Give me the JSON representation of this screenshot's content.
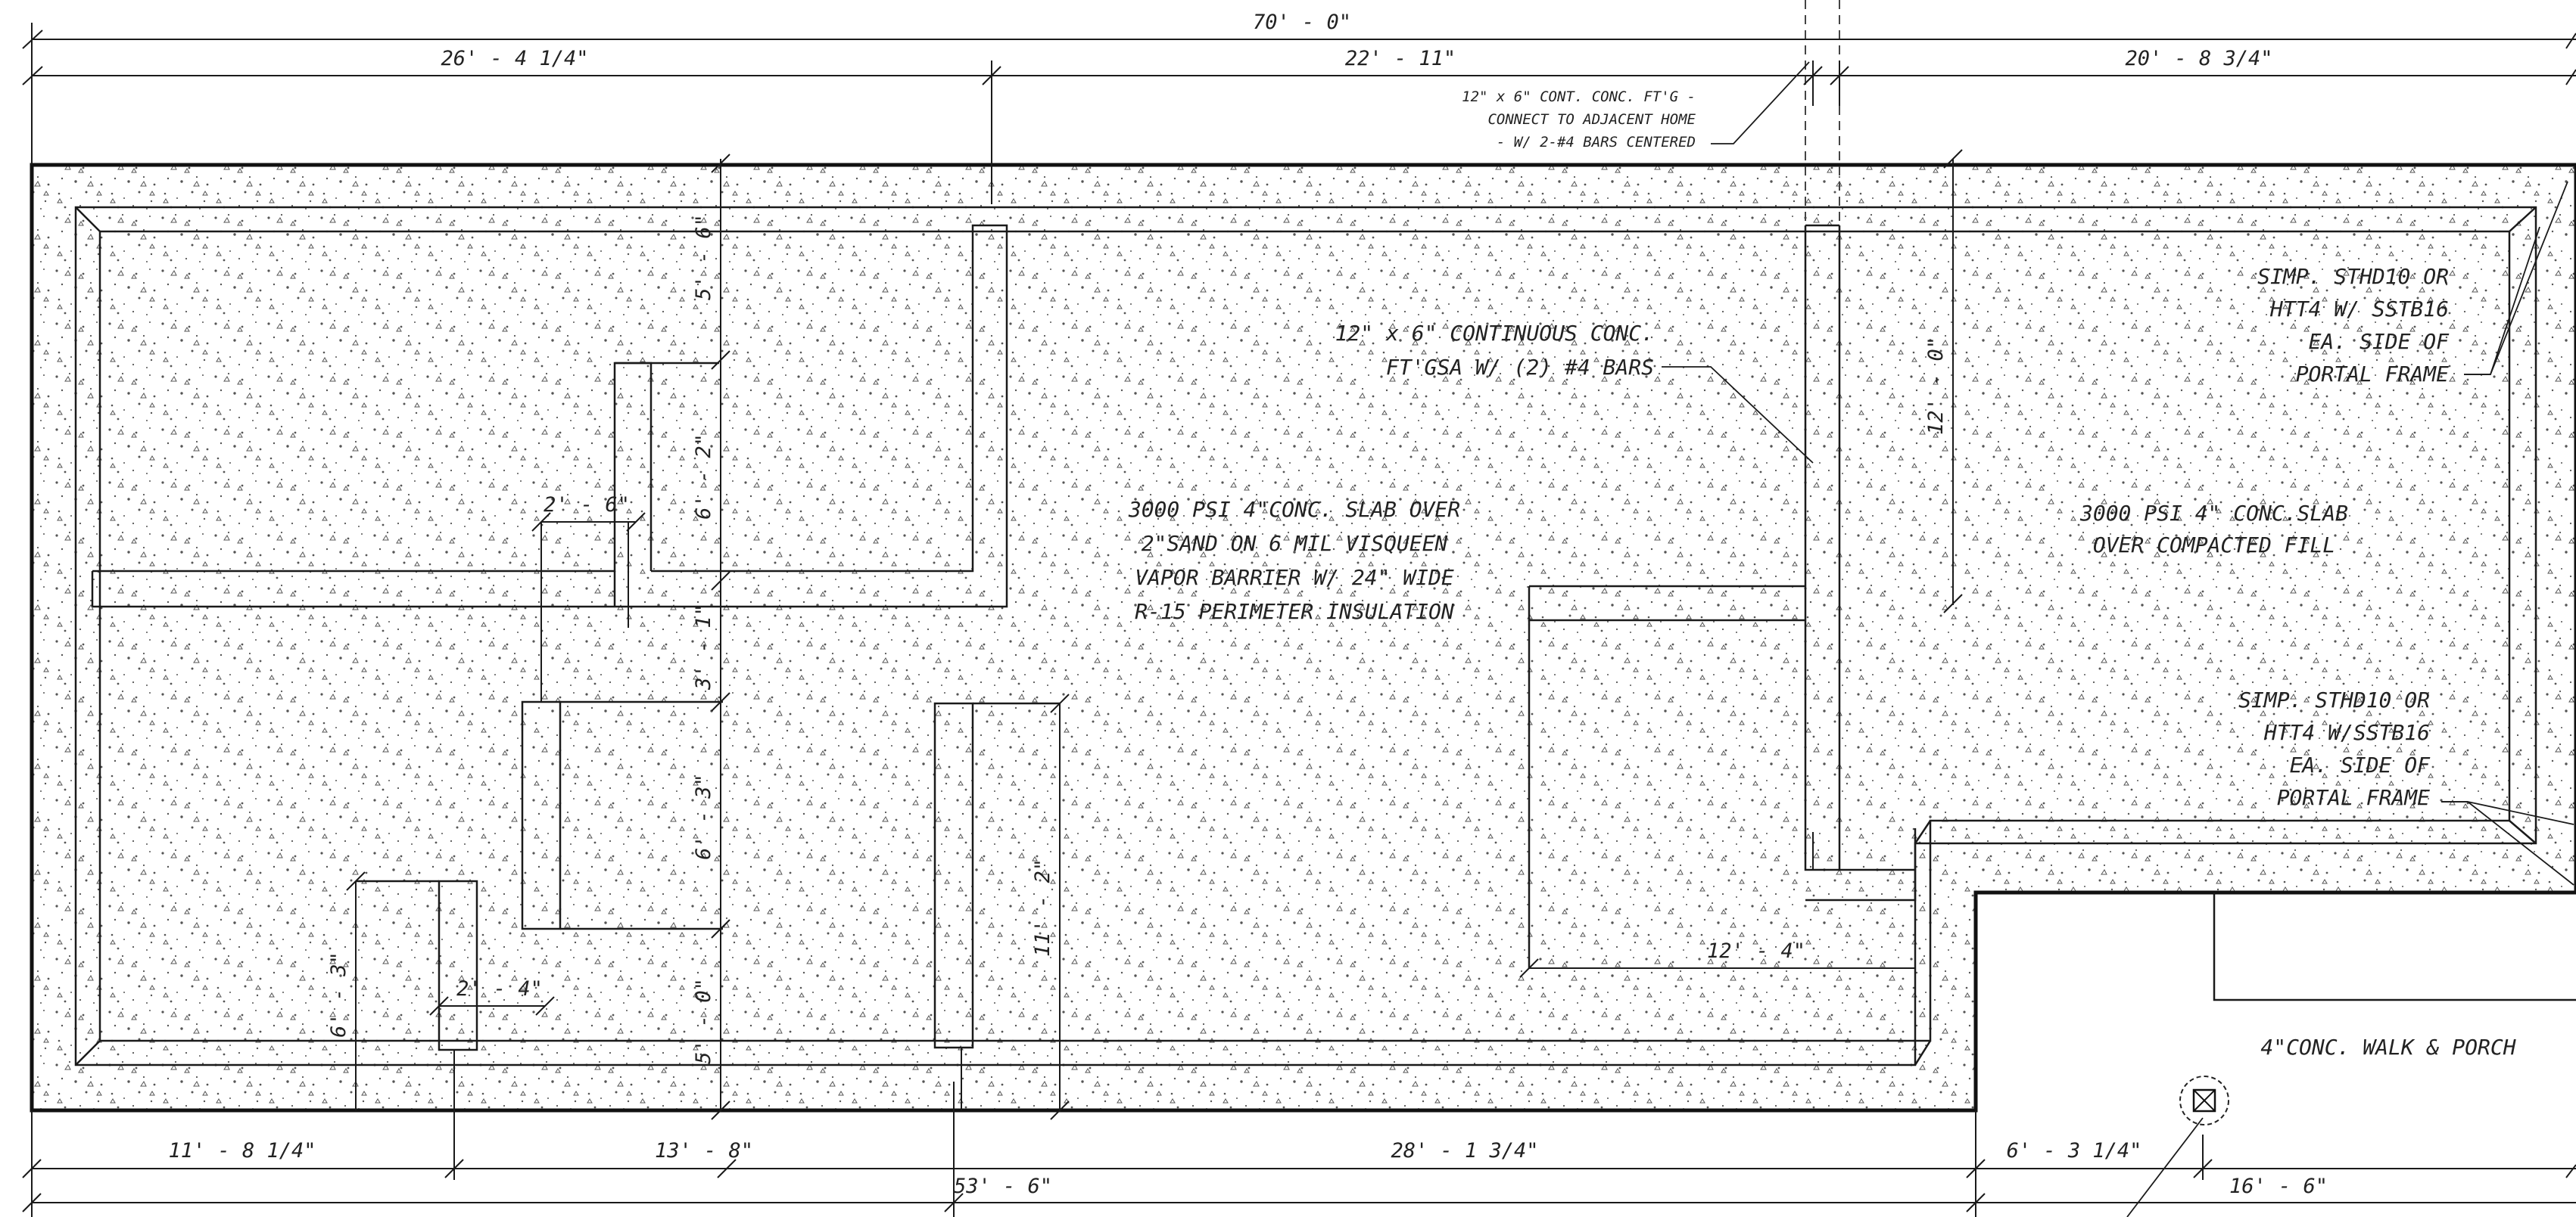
{
  "dimensions": {
    "overall_top": "70' - 0\"",
    "top_1": "26' - 4 1/4\"",
    "top_2": "22' - 11\"",
    "top_3": "20' - 8 3/4\"",
    "bottom_1": "11' - 8 1/4\"",
    "bottom_2": "13' - 8\"",
    "bottom_3": "28' - 1 3/4\"",
    "bottom_4": "6' - 3 1/4\"",
    "bottom_overall": "53' - 6\"",
    "bottom_right": "16' - 6\"",
    "v_5_6": "5' - 6\"",
    "v_6_2": "6' - 2\"",
    "v_3_1": "3' - 1\"",
    "v_6_3_right": "6' - 3\"",
    "v_5_0": "5' - 0\"",
    "v_11_2": "11' - 2\"",
    "v_12_0": "12' - 0\"",
    "v_6_3_left": "6' - 3\"",
    "h_2_6": "2' - 6\"",
    "h_2_4": "2' - 4\"",
    "h_12_4": "12' - 4\""
  },
  "notes": {
    "adjacent": [
      "12\" x 6\" CONT. CONC. FT'G -",
      "CONNECT TO ADJACENT HOME",
      "- W/ 2-#4 BARS CENTERED"
    ],
    "continuous": [
      "12\" x 6\" CONTINUOUS CONC.",
      "FT'GSA W/ (2) #4 BARS"
    ],
    "slab_main": [
      "3000 PSI 4\"CONC. SLAB OVER",
      "2\"SAND ON 6 MIL VISQUEEN",
      "VAPOR BARRIER W/ 24\" WIDE",
      "R-15 PERIMETER INSULATION"
    ],
    "slab_right": [
      "3000 PSI 4\" CONC.SLAB",
      "OVER COMPACTED FILL"
    ],
    "simpson_top": [
      "SIMP. STHD10 OR",
      "HTT4 W/ SSTB16",
      "EA. SIDE OF",
      "PORTAL FRAME"
    ],
    "simpson_bottom": [
      "SIMP. STHD10 OR",
      "HTT4 W/SSTB16",
      "EA. SIDE OF",
      "PORTAL FRAME"
    ],
    "walk": [
      "4\"CONC. WALK & PORCH"
    ]
  },
  "colors": {
    "line": "#1a1a1a",
    "stipple": "#555555",
    "paper": "#ffffff"
  },
  "icons": {
    "column": "square-x-column-icon"
  }
}
